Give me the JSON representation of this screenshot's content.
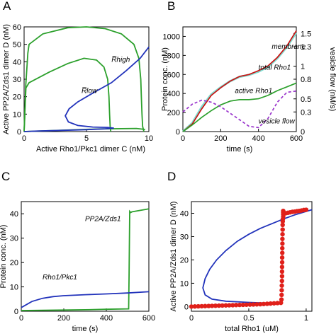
{
  "colors": {
    "green": "#2ca02c",
    "blue": "#2233bb",
    "red": "#cc1111",
    "cyan": "#7fdcd0",
    "purple": "#9933cc",
    "dot_red": "#e0201a"
  },
  "chart_data": [
    {
      "panel": "A",
      "type": "line",
      "xlabel": "Active Rho1/Pkc1 dimer C (nM)",
      "ylabel": "Active PP2A/Zds1 dimer D (nM)",
      "xlim": [
        0,
        10
      ],
      "ylim": [
        0,
        60
      ],
      "xticks": [
        0,
        5,
        10
      ],
      "yticks": [
        0,
        10,
        20,
        30,
        40,
        50,
        60
      ],
      "annotations": [
        {
          "text": "R̅high",
          "x": 7.0,
          "y": 40
        },
        {
          "text": "R̅low",
          "x": 4.6,
          "y": 22
        }
      ],
      "series": [
        {
          "color": "green",
          "points": [
            [
              0,
              0
            ],
            [
              0.05,
              8
            ],
            [
              0.12,
              25
            ],
            [
              0.3,
              45
            ],
            [
              0.4,
              50
            ],
            [
              1.5,
              56
            ],
            [
              3.5,
              59.5
            ],
            [
              5.0,
              60
            ],
            [
              6.5,
              59
            ],
            [
              7.8,
              56
            ],
            [
              8.8,
              50
            ],
            [
              9.2,
              42
            ],
            [
              9.35,
              30
            ],
            [
              9.4,
              20
            ],
            [
              9.45,
              10
            ],
            [
              9.5,
              3
            ],
            [
              9.6,
              0
            ]
          ]
        },
        {
          "color": "green",
          "points": [
            [
              0,
              0
            ],
            [
              0.05,
              10
            ],
            [
              0.15,
              25
            ],
            [
              0.4,
              28
            ],
            [
              2.0,
              34
            ],
            [
              3.5,
              39
            ],
            [
              4.8,
              42
            ],
            [
              5.8,
              41
            ],
            [
              6.4,
              37
            ],
            [
              6.7,
              30
            ],
            [
              6.8,
              20
            ],
            [
              6.85,
              10
            ],
            [
              6.9,
              3
            ],
            [
              6.95,
              0
            ]
          ]
        },
        {
          "color": "green",
          "points": [
            [
              0,
              0
            ],
            [
              6.0,
              1.5
            ],
            [
              9.0,
              1.8
            ],
            [
              9.7,
              1.2
            ]
          ]
        },
        {
          "color": "blue",
          "points": [
            [
              0,
              0
            ],
            [
              1,
              0.3
            ],
            [
              3,
              0.7
            ],
            [
              5,
              1.1
            ],
            [
              6.5,
              1.6
            ],
            [
              7.2,
              2.0
            ],
            [
              6.7,
              2.4
            ],
            [
              5.5,
              2.6
            ],
            [
              4.3,
              3.5
            ],
            [
              3.55,
              5.5
            ],
            [
              3.3,
              9
            ],
            [
              3.6,
              13
            ],
            [
              4.3,
              17
            ],
            [
              5.5,
              22
            ],
            [
              7,
              28
            ],
            [
              8.2,
              35
            ],
            [
              9.3,
              42
            ],
            [
              10,
              48.5
            ]
          ]
        }
      ]
    },
    {
      "panel": "B",
      "type": "line",
      "xlabel": "time (s)",
      "ylabel": "Protein conc. (nM)",
      "ylabel_right": "vesicle flow (nM/s)",
      "xlim": [
        0,
        600
      ],
      "ylim": [
        0,
        1100
      ],
      "ylim_right": [
        0,
        1.6
      ],
      "xticks": [
        0,
        200,
        400,
        600
      ],
      "yticks": [
        0,
        200,
        400,
        600,
        800,
        1000
      ],
      "yticks_right": [
        0,
        0.3,
        0.5,
        0.8,
        1,
        1.3,
        1.5
      ],
      "ytick_labels_right": [
        "0",
        "0.3",
        "0.5",
        "0.8",
        "1",
        "1.3",
        "1.5"
      ],
      "annotations": [
        {
          "text": "membrane",
          "x": 470,
          "y": 870
        },
        {
          "text": "total Rho1",
          "x": 400,
          "y": 650
        },
        {
          "text": "active Rho1",
          "x": 275,
          "y": 405
        },
        {
          "text": "vesicle flow",
          "x": 400,
          "y": 85
        }
      ],
      "series": [
        {
          "name": "membrane",
          "color": "red",
          "axis": "left",
          "x": [
            0,
            50,
            100,
            150,
            200,
            250,
            300,
            350,
            400,
            450,
            500,
            550,
            600
          ],
          "values": [
            0,
            80,
            240,
            380,
            460,
            530,
            580,
            600,
            640,
            690,
            780,
            900,
            1060
          ]
        },
        {
          "name": "total Rho1",
          "color": "cyan",
          "axis": "left",
          "x": [
            0,
            50,
            100,
            150,
            200,
            250,
            300,
            350,
            400,
            450,
            500,
            550,
            600
          ],
          "values": [
            0,
            90,
            260,
            390,
            465,
            530,
            575,
            595,
            630,
            680,
            770,
            890,
            1040
          ]
        },
        {
          "name": "active Rho1",
          "color": "green",
          "axis": "left",
          "x": [
            0,
            50,
            100,
            150,
            200,
            250,
            300,
            350,
            400,
            450,
            500,
            550,
            600
          ],
          "values": [
            0,
            70,
            150,
            220,
            280,
            320,
            335,
            335,
            345,
            380,
            430,
            470,
            510
          ]
        },
        {
          "name": "vesicle flow",
          "color": "purple",
          "axis": "right",
          "dashed": true,
          "x": [
            0,
            50,
            100,
            150,
            200,
            250,
            300,
            350,
            400,
            450,
            500,
            550,
            600
          ],
          "values": [
            0.3,
            0.42,
            0.48,
            0.45,
            0.38,
            0.28,
            0.18,
            0.08,
            0.06,
            0.2,
            0.45,
            0.6,
            0.62
          ]
        }
      ]
    },
    {
      "panel": "C",
      "type": "line",
      "xlabel": "time (s)",
      "ylabel": "Protein conc. (nM)",
      "xlim": [
        0,
        600
      ],
      "ylim": [
        0,
        45
      ],
      "xticks": [
        0,
        200,
        400,
        600
      ],
      "yticks": [
        0,
        10,
        20,
        30,
        40
      ],
      "annotations": [
        {
          "text": "PP2A/Zds1",
          "x": 300,
          "y": 37
        },
        {
          "text": "Rho1/Pkc1",
          "x": 100,
          "y": 13
        }
      ],
      "series": [
        {
          "name": "PP2A/Zds1",
          "color": "green",
          "x": [
            0,
            100,
            200,
            300,
            400,
            505,
            507,
            510,
            515,
            520,
            600
          ],
          "values": [
            0.3,
            0.4,
            0.5,
            0.6,
            0.8,
            1.0,
            15,
            41,
            40.5,
            40.8,
            42
          ]
        },
        {
          "name": "Rho1/Pkc1",
          "color": "blue",
          "x": [
            0,
            50,
            100,
            150,
            200,
            300,
            400,
            500,
            600
          ],
          "values": [
            1.5,
            4.0,
            5.3,
            6.0,
            6.4,
            6.8,
            7.1,
            7.5,
            8.0
          ]
        }
      ]
    },
    {
      "panel": "D",
      "type": "scatter",
      "xlabel": "total Rho1 (uM)",
      "ylabel": "Active PP2A/Zds1 dimer D (nM)",
      "xlim": [
        0,
        1.05
      ],
      "ylim": [
        -2,
        45
      ],
      "xticks": [
        0,
        0.5,
        1
      ],
      "yticks": [
        0,
        10,
        20,
        30,
        40
      ],
      "series": [
        {
          "color": "blue",
          "kind": "line",
          "points": [
            [
              0.66,
              1.5
            ],
            [
              0.5,
              1.8
            ],
            [
              0.3,
              2.3
            ],
            [
              0.18,
              3.2
            ],
            [
              0.12,
              5
            ],
            [
              0.1,
              8
            ],
            [
              0.12,
              12
            ],
            [
              0.16,
              16
            ],
            [
              0.22,
              20
            ],
            [
              0.3,
              24
            ],
            [
              0.4,
              28
            ],
            [
              0.5,
              31
            ],
            [
              0.6,
              33.5
            ],
            [
              0.7,
              35.5
            ],
            [
              0.8,
              37.5
            ],
            [
              0.9,
              39.3
            ],
            [
              1.0,
              40.8
            ],
            [
              1.05,
              41.5
            ]
          ]
        },
        {
          "color": "blue",
          "kind": "line",
          "points": [
            [
              0,
              0
            ],
            [
              0.2,
              0.3
            ],
            [
              0.4,
              0.6
            ],
            [
              0.6,
              1.0
            ],
            [
              0.66,
              1.5
            ]
          ]
        },
        {
          "color": "dot_red",
          "kind": "dots",
          "points": [
            [
              0.0,
              0
            ],
            [
              0.03,
              0.05
            ],
            [
              0.06,
              0.1
            ],
            [
              0.09,
              0.15
            ],
            [
              0.12,
              0.2
            ],
            [
              0.15,
              0.25
            ],
            [
              0.18,
              0.3
            ],
            [
              0.21,
              0.35
            ],
            [
              0.24,
              0.4
            ],
            [
              0.27,
              0.45
            ],
            [
              0.3,
              0.5
            ],
            [
              0.33,
              0.55
            ],
            [
              0.36,
              0.6
            ],
            [
              0.39,
              0.65
            ],
            [
              0.42,
              0.7
            ],
            [
              0.45,
              0.75
            ],
            [
              0.48,
              0.8
            ],
            [
              0.51,
              0.85
            ],
            [
              0.54,
              0.9
            ],
            [
              0.57,
              0.95
            ],
            [
              0.6,
              1.0
            ],
            [
              0.63,
              1.1
            ],
            [
              0.66,
              1.2
            ],
            [
              0.69,
              1.3
            ],
            [
              0.72,
              1.4
            ],
            [
              0.75,
              1.5
            ],
            [
              0.78,
              1.6
            ],
            [
              0.785,
              3
            ],
            [
              0.786,
              5
            ],
            [
              0.787,
              7
            ],
            [
              0.788,
              9
            ],
            [
              0.789,
              11
            ],
            [
              0.79,
              13
            ],
            [
              0.79,
              15
            ],
            [
              0.79,
              17
            ],
            [
              0.791,
              19
            ],
            [
              0.791,
              21
            ],
            [
              0.792,
              23
            ],
            [
              0.792,
              25
            ],
            [
              0.793,
              27
            ],
            [
              0.793,
              29
            ],
            [
              0.794,
              31
            ],
            [
              0.795,
              33
            ],
            [
              0.795,
              35
            ],
            [
              0.796,
              36.5
            ],
            [
              0.797,
              37.5
            ],
            [
              0.8,
              38.5
            ],
            [
              0.8,
              39.5
            ],
            [
              0.8,
              40.3
            ],
            [
              0.8,
              41
            ],
            [
              0.82,
              40
            ],
            [
              0.84,
              40.2
            ],
            [
              0.86,
              40.4
            ],
            [
              0.88,
              40.6
            ],
            [
              0.9,
              40.7
            ],
            [
              0.92,
              40.9
            ],
            [
              0.94,
              41.0
            ],
            [
              0.96,
              41.2
            ],
            [
              0.98,
              41.4
            ],
            [
              1.0,
              41.5
            ]
          ]
        }
      ]
    }
  ]
}
